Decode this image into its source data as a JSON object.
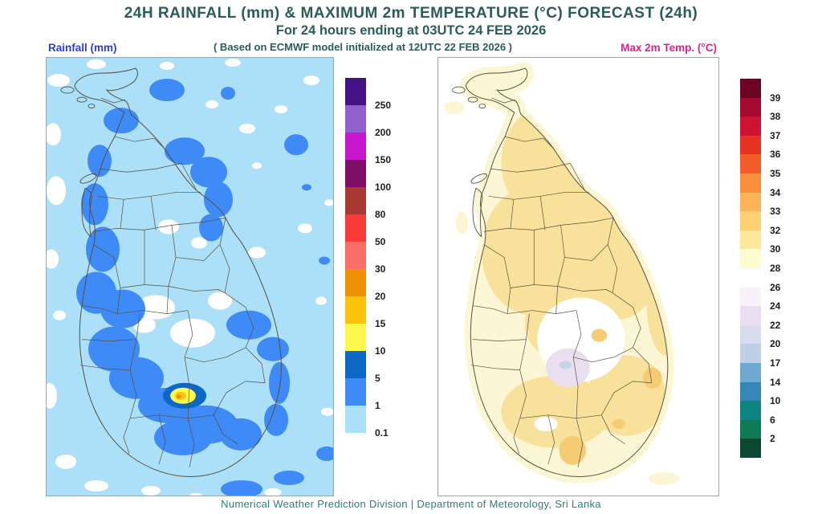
{
  "header": {
    "title": "24H RAINFALL (mm) & MAXIMUM 2m TEMPERATURE (°C) FORECAST (24h)",
    "subtitle": "For 24 hours ending at 03UTC 24 FEB 2026",
    "model_note": "( Based on ECMWF model initialized at 12UTC 22 FEB 2026 )"
  },
  "panels": {
    "rainfall": {
      "label": "Rainfall (mm)"
    },
    "temperature": {
      "label": "Max 2m Temp. (°C)"
    }
  },
  "colors": {
    "title": "#2B5C5A",
    "rain_label": "#2B3FD6",
    "temp_label": "#E0218A",
    "footer": "#2E7D7A",
    "map_border": "#A2A2A2",
    "district_line": "#55503C",
    "rain_sea": "#ACDFF8"
  },
  "legends": {
    "rainfall": {
      "units": "mm",
      "segments": [
        {
          "color": "#451285",
          "label": "250"
        },
        {
          "color": "#9260CE",
          "label": "200"
        },
        {
          "color": "#C816CE",
          "label": "150"
        },
        {
          "color": "#7E0E66",
          "label": "100"
        },
        {
          "color": "#A83832",
          "label": "80"
        },
        {
          "color": "#F93B38",
          "label": "50"
        },
        {
          "color": "#FA6E68",
          "label": "30"
        },
        {
          "color": "#EF9208",
          "label": "20"
        },
        {
          "color": "#FDC30B",
          "label": "15"
        },
        {
          "color": "#FDF94E",
          "label": "10"
        },
        {
          "color": "#0D67C4",
          "label": "5"
        },
        {
          "color": "#3E8AF7",
          "label": "1"
        },
        {
          "color": "#ACDFF8",
          "label": "0.1"
        }
      ]
    },
    "temperature": {
      "units": "°C",
      "segments": [
        {
          "color": "#6B0423",
          "label": "39"
        },
        {
          "color": "#A60A31",
          "label": "38"
        },
        {
          "color": "#CE1233",
          "label": "37"
        },
        {
          "color": "#E63220",
          "label": "36"
        },
        {
          "color": "#F25C28",
          "label": "35"
        },
        {
          "color": "#F98E3D",
          "label": "34"
        },
        {
          "color": "#FCB45B",
          "label": "33"
        },
        {
          "color": "#FDD173",
          "label": "32"
        },
        {
          "color": "#FCE79A",
          "label": "30"
        },
        {
          "color": "#FEFBCE",
          "label": "28"
        },
        {
          "color": "#FFFFFF",
          "label": "26"
        },
        {
          "color": "#FAF1F8",
          "label": "24"
        },
        {
          "color": "#EADFF0",
          "label": "22"
        },
        {
          "color": "#D9DCEE",
          "label": "20"
        },
        {
          "color": "#BFCFE7",
          "label": "17"
        },
        {
          "color": "#6FA8D0",
          "label": "14"
        },
        {
          "color": "#3687B8",
          "label": "10"
        },
        {
          "color": "#0E8480",
          "label": "6"
        },
        {
          "color": "#107A56",
          "label": "2"
        },
        {
          "color": "#0B4731",
          "label": null
        }
      ]
    }
  },
  "footer": {
    "credit": "Numerical Weather Prediction Division | Department of Meteorology, Sri Lanka"
  }
}
